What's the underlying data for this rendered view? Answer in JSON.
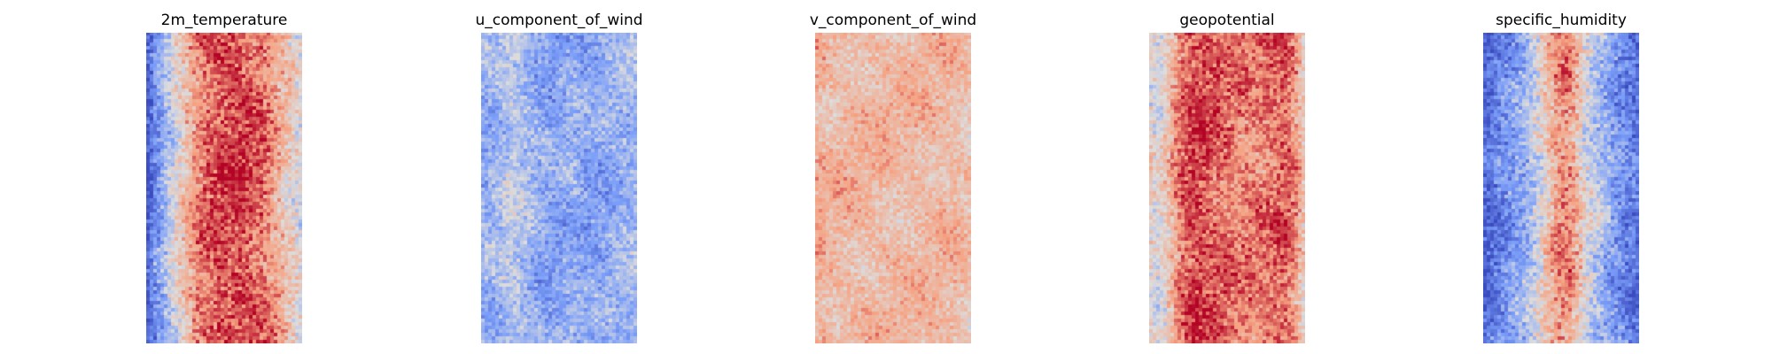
{
  "chart_data": [
    {
      "type": "heatmap",
      "title": "2m_temperature",
      "colormap": "coolwarm",
      "axis": "off",
      "grid": false,
      "legend": "none",
      "columns": 44,
      "rows": 88,
      "column_profile_mean": [
        0.05,
        0.2,
        0.32,
        0.42,
        0.52,
        0.62,
        0.72,
        0.8,
        0.85,
        0.88,
        0.9,
        0.9,
        0.9,
        0.9,
        0.88,
        0.86,
        0.82,
        0.76,
        0.7,
        0.62,
        0.55,
        0.5
      ],
      "variability": 0.14
    },
    {
      "type": "heatmap",
      "title": "u_component_of_wind",
      "colormap": "coolwarm",
      "axis": "off",
      "grid": false,
      "legend": "none",
      "columns": 44,
      "rows": 88,
      "column_profile_mean": [
        0.32,
        0.33,
        0.35,
        0.4,
        0.42,
        0.4,
        0.36,
        0.33,
        0.3,
        0.28,
        0.28,
        0.3,
        0.32,
        0.3,
        0.28,
        0.27,
        0.28,
        0.3,
        0.32,
        0.33,
        0.34,
        0.34
      ],
      "variability": 0.12
    },
    {
      "type": "heatmap",
      "title": "v_component_of_wind",
      "colormap": "coolwarm",
      "axis": "off",
      "grid": false,
      "legend": "none",
      "columns": 44,
      "rows": 88,
      "column_profile_mean": [
        0.7,
        0.68,
        0.66,
        0.66,
        0.66,
        0.66,
        0.66,
        0.66,
        0.66,
        0.66,
        0.66,
        0.66,
        0.66,
        0.66,
        0.66,
        0.66,
        0.66,
        0.66,
        0.66,
        0.66,
        0.64,
        0.62
      ],
      "variability": 0.1
    },
    {
      "type": "heatmap",
      "title": "geopotential",
      "colormap": "coolwarm",
      "axis": "off",
      "grid": false,
      "legend": "none",
      "columns": 44,
      "rows": 88,
      "column_profile_mean": [
        0.55,
        0.5,
        0.58,
        0.7,
        0.82,
        0.88,
        0.9,
        0.9,
        0.88,
        0.86,
        0.84,
        0.82,
        0.8,
        0.8,
        0.8,
        0.8,
        0.82,
        0.84,
        0.86,
        0.84,
        0.76,
        0.6
      ],
      "variability": 0.13
    },
    {
      "type": "heatmap",
      "title": "specific_humidity",
      "colormap": "coolwarm",
      "axis": "off",
      "grid": false,
      "legend": "none",
      "columns": 44,
      "rows": 88,
      "column_profile_mean": [
        0.1,
        0.13,
        0.18,
        0.22,
        0.26,
        0.3,
        0.36,
        0.44,
        0.55,
        0.66,
        0.75,
        0.78,
        0.74,
        0.62,
        0.5,
        0.42,
        0.36,
        0.3,
        0.24,
        0.2,
        0.16,
        0.14
      ],
      "variability": 0.14
    }
  ]
}
